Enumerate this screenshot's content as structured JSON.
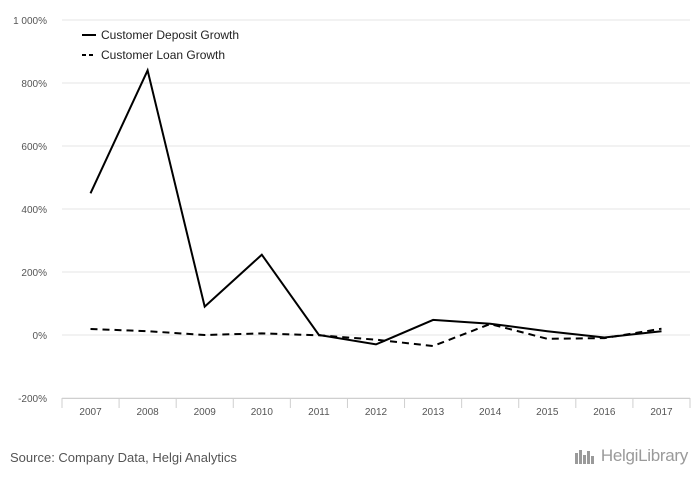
{
  "chart_data": {
    "type": "line",
    "categories": [
      "2007",
      "2008",
      "2009",
      "2010",
      "2011",
      "2012",
      "2013",
      "2014",
      "2015",
      "2016",
      "2017"
    ],
    "series": [
      {
        "name": "Customer Deposit Growth",
        "dash": "solid",
        "values": [
          450,
          840,
          90,
          255,
          0,
          -30,
          48,
          36,
          12,
          -8,
          12
        ]
      },
      {
        "name": "Customer Loan Growth",
        "dash": "dashed",
        "values": [
          19,
          12,
          0,
          5,
          -1,
          -15,
          -35,
          35,
          -12,
          -10,
          20
        ]
      }
    ],
    "ylim": [
      -200,
      1000
    ],
    "yticks": [
      -200,
      0,
      200,
      400,
      600,
      800,
      1000
    ],
    "ytick_labels": [
      "-200%",
      "0%",
      "200%",
      "400%",
      "600%",
      "800%",
      "1 000%"
    ],
    "title": "",
    "xlabel": "",
    "ylabel": "",
    "grid": "horizontal",
    "legend_position": "top-left",
    "line_color": "#000000",
    "grid_color": "#e6e6e6"
  },
  "footer": {
    "source": "Source: Company Data, Helgi Analytics",
    "brand": "HelgiLibrary"
  }
}
